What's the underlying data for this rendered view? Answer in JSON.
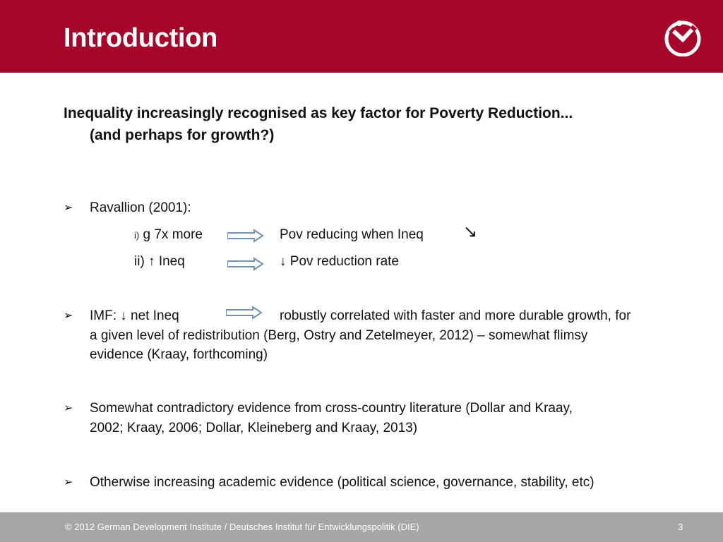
{
  "slide": {
    "title": "Introduction",
    "lead_line1": "Inequality increasingly recognised as key factor for Poverty Reduction...",
    "lead_line2": "(and perhaps for growth?)"
  },
  "bullets": {
    "ravallion": {
      "label": "Ravallion (2001):",
      "row1_prefix": "i)",
      "row1_left": "g 7x more",
      "row1_right": "Pov reducing when Ineq",
      "row1_arrow": "↘",
      "row2_left": "ii) ↑ Ineq",
      "row2_right": "↓ Pov reduction rate"
    },
    "imf": {
      "left": "IMF: ↓ net Ineq",
      "right": "robustly correlated with faster and more durable growth, for",
      "line2": "a given level of redistribution (Berg, Ostry and Zetelmeyer, 2012) – somewhat flimsy",
      "line3": "evidence (Kraay, forthcoming)"
    },
    "contradictory": {
      "line1": "Somewhat contradictory evidence from cross-country literature (Dollar and Kraay,",
      "line2": "2002; Kraay, 2006; Dollar, Kleineberg and Kraay, 2013)"
    },
    "otherwise": {
      "line1": "Otherwise increasing academic evidence (political science, governance, stability, etc)"
    },
    "marker": "➢"
  },
  "footer": {
    "copyright": "© 2012 German Development Institute / Deutsches Institut für Entwicklungspolitik (DIE)",
    "page_number": "3"
  },
  "colors": {
    "header_red": "#a6062a",
    "footer_gray": "#a6a6a6",
    "arrow_blue": "#6f94b5"
  },
  "icons": {
    "logo": "die-logo-icon",
    "implies_arrow": "double-arrow-right-icon",
    "bullet": "arrowhead-bullet-icon"
  }
}
